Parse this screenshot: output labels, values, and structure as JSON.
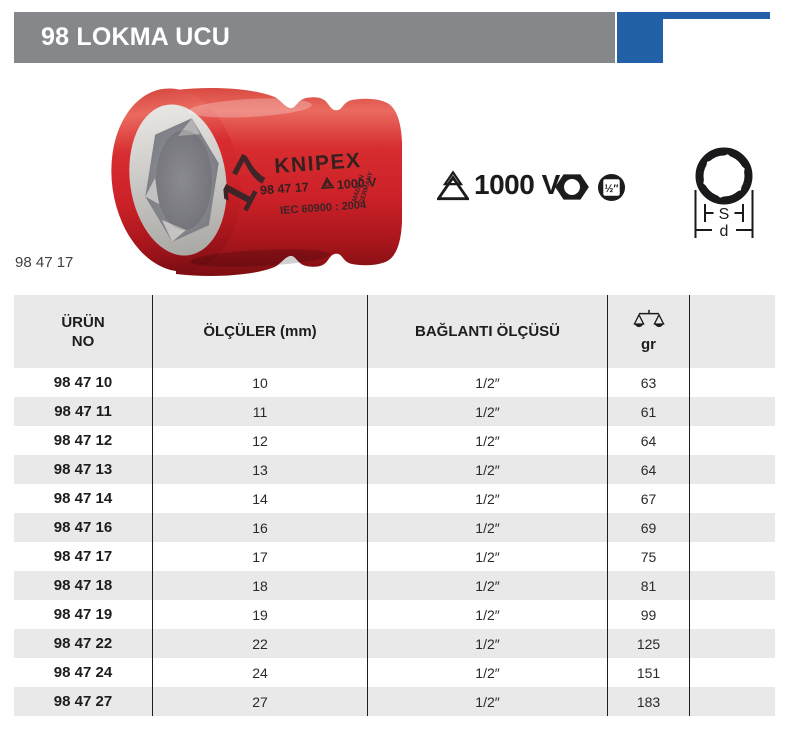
{
  "header": {
    "title": "98 LOKMA UCU"
  },
  "product": {
    "reference": "98 47 17",
    "socket_print": {
      "size": "17",
      "brand": "KNIPEX",
      "code": "98 47 17",
      "voltage": "1000 V",
      "standard": "IEC 60900 : 2004",
      "origin_line1": "MADE IN",
      "origin_line2": "GERMANY"
    }
  },
  "features": {
    "voltage_rating": "1000 V",
    "drive_size": "½″"
  },
  "diagram": {
    "flats_label": "S",
    "diameter_label": "d"
  },
  "table": {
    "headers": {
      "product_no_line1": "ÜRÜN",
      "product_no_line2": "NO",
      "dimensions": "ÖLÇÜLER (mm)",
      "drive": "BAĞLANTI ÖLÇÜSÜ",
      "weight_unit": "gr"
    },
    "rows": [
      {
        "no": "98 47 10",
        "size_mm": "10",
        "drive": "1/2″",
        "weight_g": "63"
      },
      {
        "no": "98 47 11",
        "size_mm": "11",
        "drive": "1/2″",
        "weight_g": "61"
      },
      {
        "no": "98 47 12",
        "size_mm": "12",
        "drive": "1/2″",
        "weight_g": "64"
      },
      {
        "no": "98 47 13",
        "size_mm": "13",
        "drive": "1/2″",
        "weight_g": "64"
      },
      {
        "no": "98 47 14",
        "size_mm": "14",
        "drive": "1/2″",
        "weight_g": "67"
      },
      {
        "no": "98 47 16",
        "size_mm": "16",
        "drive": "1/2″",
        "weight_g": "69"
      },
      {
        "no": "98 47 17",
        "size_mm": "17",
        "drive": "1/2″",
        "weight_g": "75"
      },
      {
        "no": "98 47 18",
        "size_mm": "18",
        "drive": "1/2″",
        "weight_g": "81"
      },
      {
        "no": "98 47 19",
        "size_mm": "19",
        "drive": "1/2″",
        "weight_g": "99"
      },
      {
        "no": "98 47 22",
        "size_mm": "22",
        "drive": "1/2″",
        "weight_g": "125"
      },
      {
        "no": "98 47 24",
        "size_mm": "24",
        "drive": "1/2″",
        "weight_g": "151"
      },
      {
        "no": "98 47 27",
        "size_mm": "27",
        "drive": "1/2″",
        "weight_g": "183"
      }
    ]
  },
  "colors": {
    "accent_blue": "#2261a8",
    "title_bar_gray": "#85878a",
    "row_alt_gray": "#e9e9e9",
    "socket_red": "#d2232a",
    "text_black": "#1d1d1f"
  }
}
